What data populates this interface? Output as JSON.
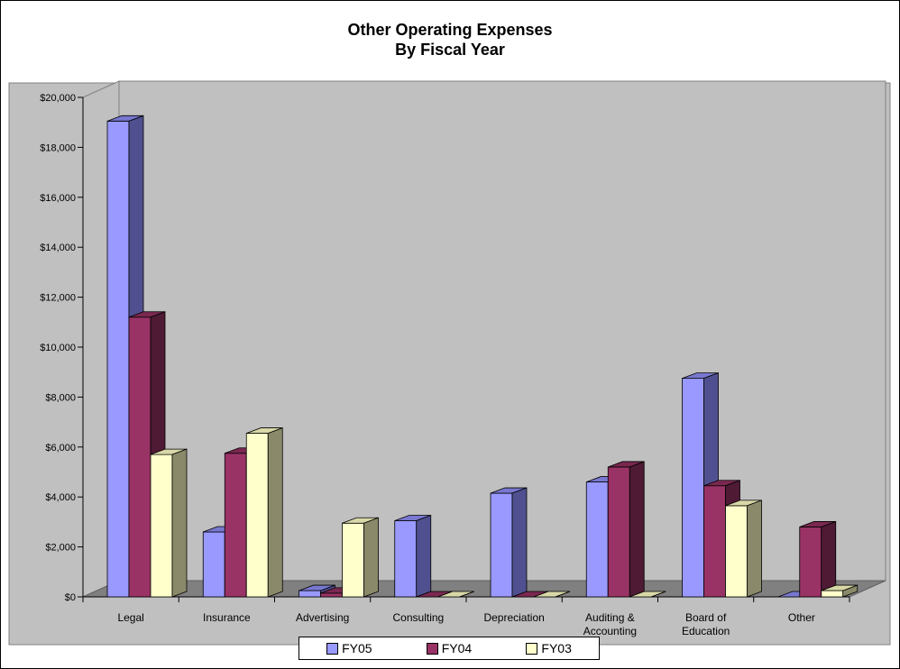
{
  "chart_data": {
    "type": "bar",
    "title_line1": "Other Operating Expenses",
    "title_line2": "By Fiscal Year",
    "categories": [
      [
        "Legal"
      ],
      [
        "Insurance"
      ],
      [
        "Advertising"
      ],
      [
        "Consulting"
      ],
      [
        "Depreciation"
      ],
      [
        "Auditing &",
        "Accounting"
      ],
      [
        "Board of",
        "Education"
      ],
      [
        "Other"
      ]
    ],
    "series": [
      {
        "name": "FY05",
        "values": [
          19050,
          2600,
          250,
          3050,
          4150,
          4600,
          8750,
          0
        ],
        "color": "#9999ff",
        "side": "#505090",
        "top": "#7878d0"
      },
      {
        "name": "FY04",
        "values": [
          11200,
          5750,
          150,
          0,
          0,
          5200,
          4450,
          2800
        ],
        "color": "#993366",
        "side": "#4e1a34",
        "top": "#7a2850"
      },
      {
        "name": "FY03",
        "values": [
          5700,
          6550,
          2950,
          0,
          0,
          0,
          3650,
          250
        ],
        "color": "#ffffcc",
        "side": "#8a8a6a",
        "top": "#d8d8a8"
      }
    ],
    "yticks": [
      "$0",
      "$2,000",
      "$4,000",
      "$6,000",
      "$8,000",
      "$10,000",
      "$12,000",
      "$14,000",
      "$16,000",
      "$18,000",
      "$20,000"
    ],
    "ylim": [
      0,
      20000
    ],
    "legend_position": "bottom",
    "wall_color": "#c0c0c0",
    "floor_color": "#808080"
  }
}
